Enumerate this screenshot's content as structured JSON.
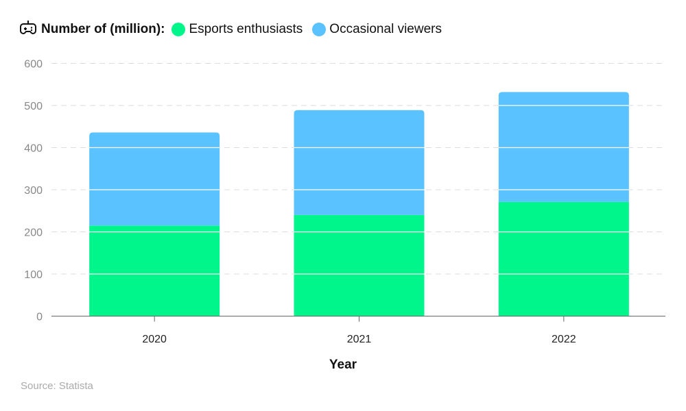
{
  "legend": {
    "icon": "gamepad-icon",
    "title": "Number of (million):"
  },
  "chart_data": {
    "type": "bar",
    "stacked": true,
    "categories": [
      "2020",
      "2021",
      "2022"
    ],
    "series": [
      {
        "name": "Esports enthusiasts",
        "color": "#00f58a",
        "values": [
          215,
          240,
          271
        ]
      },
      {
        "name": "Occasional viewers",
        "color": "#5ac3ff",
        "values": [
          221,
          249,
          261
        ]
      }
    ],
    "xlabel": "Year",
    "ylabel": "",
    "ylim": [
      0,
      600
    ],
    "yticks": [
      "0",
      "100",
      "200",
      "300",
      "400",
      "500",
      "600"
    ],
    "grid": true,
    "legend_position": "top-left"
  },
  "source": "Source: Statista"
}
